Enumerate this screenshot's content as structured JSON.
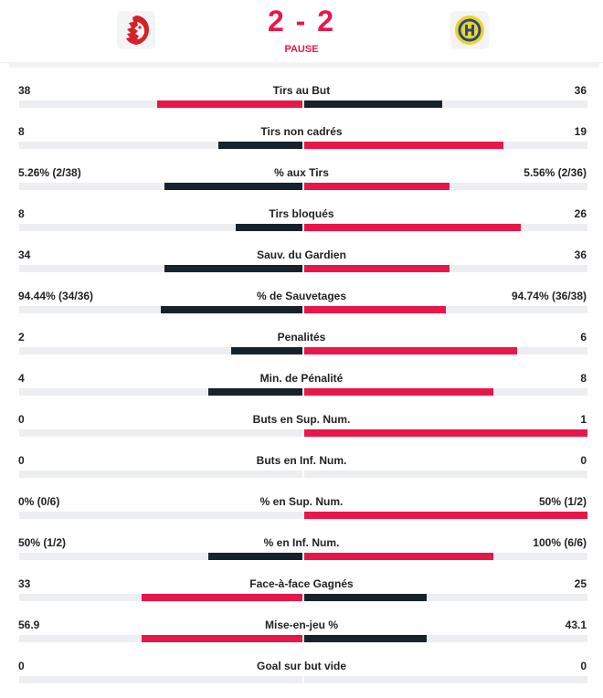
{
  "match": {
    "score": "2 - 2",
    "status": "PAUSE",
    "home_logo_icon": "lausanne-lion-logo-icon",
    "away_logo_icon": "hc-davos-logo-icon"
  },
  "colors": {
    "accent": "#e8174a",
    "dark": "#16232d",
    "track": "#eceef1"
  },
  "stats": [
    {
      "label": "Tirs au But",
      "left": "38",
      "right": "36",
      "left_share": 0.514,
      "right_share": 0.486,
      "leader": "left"
    },
    {
      "label": "Tirs non cadrés",
      "left": "8",
      "right": "19",
      "left_share": 0.296,
      "right_share": 0.704,
      "leader": "right"
    },
    {
      "label": "% aux Tirs",
      "left": "5.26% (2/38)",
      "right": "5.56% (2/36)",
      "left_share": 0.486,
      "right_share": 0.514,
      "leader": "right"
    },
    {
      "label": "Tirs bloqués",
      "left": "8",
      "right": "26",
      "left_share": 0.235,
      "right_share": 0.765,
      "leader": "right"
    },
    {
      "label": "Sauv. du Gardien",
      "left": "34",
      "right": "36",
      "left_share": 0.486,
      "right_share": 0.514,
      "leader": "right"
    },
    {
      "label": "% de Sauvetages",
      "left": "94.44% (34/36)",
      "right": "94.74% (36/38)",
      "left_share": 0.499,
      "right_share": 0.501,
      "leader": "right"
    },
    {
      "label": "Penalités",
      "left": "2",
      "right": "6",
      "left_share": 0.25,
      "right_share": 0.75,
      "leader": "right"
    },
    {
      "label": "Min. de Pénalité",
      "left": "4",
      "right": "8",
      "left_share": 0.333,
      "right_share": 0.667,
      "leader": "right"
    },
    {
      "label": "Buts en Sup. Num.",
      "left": "0",
      "right": "1",
      "left_share": 0,
      "right_share": 1,
      "leader": "right"
    },
    {
      "label": "Buts en Inf. Num.",
      "left": "0",
      "right": "0",
      "left_share": 0,
      "right_share": 0,
      "leader": "none"
    },
    {
      "label": "% en Sup. Num.",
      "left": "0% (0/6)",
      "right": "50% (1/2)",
      "left_share": 0,
      "right_share": 1,
      "leader": "right"
    },
    {
      "label": "% en Inf. Num.",
      "left": "50% (1/2)",
      "right": "100% (6/6)",
      "left_share": 0.333,
      "right_share": 0.667,
      "leader": "right"
    },
    {
      "label": "Face-à-face Gagnés",
      "left": "33",
      "right": "25",
      "left_share": 0.569,
      "right_share": 0.431,
      "leader": "left"
    },
    {
      "label": "Mise-en-jeu %",
      "left": "56.9",
      "right": "43.1",
      "left_share": 0.569,
      "right_share": 0.431,
      "leader": "left"
    },
    {
      "label": "Goal sur but vide",
      "left": "0",
      "right": "0",
      "left_share": 0,
      "right_share": 0,
      "leader": "none"
    }
  ]
}
